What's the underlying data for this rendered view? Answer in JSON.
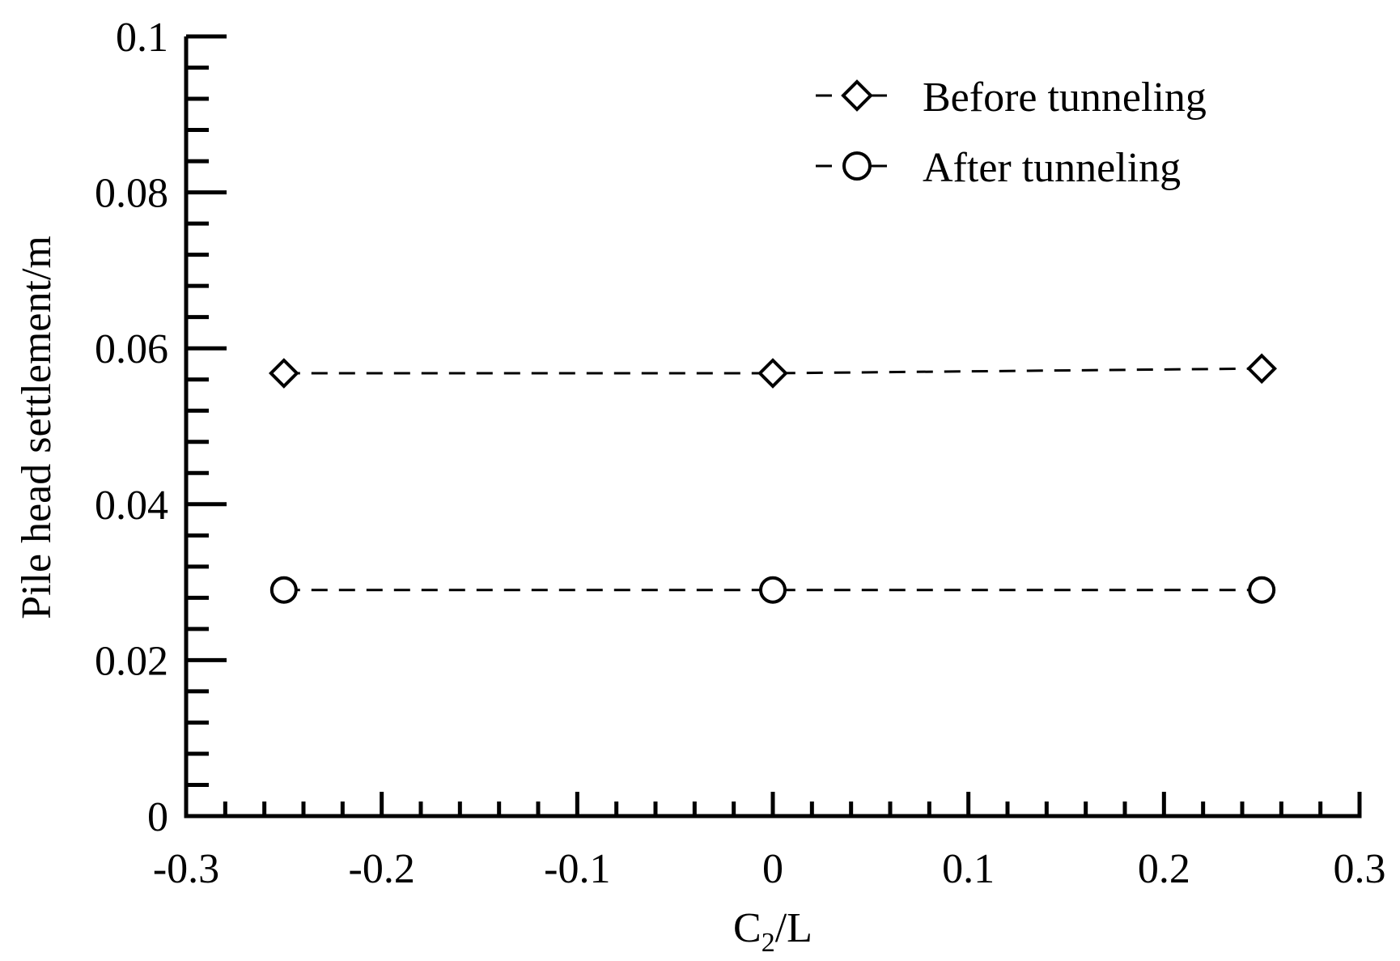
{
  "chart_data": {
    "type": "line",
    "xlabel_main": "C",
    "xlabel_sub": "2",
    "xlabel_rest": "/L",
    "ylabel": "Pile head settlement/m",
    "xlim": [
      -0.3,
      0.3
    ],
    "ylim": [
      0,
      0.1
    ],
    "xticks": [
      -0.3,
      -0.2,
      -0.1,
      0,
      0.1,
      0.2,
      0.3
    ],
    "xtick_labels": [
      "-0.3",
      "-0.2",
      "-0.1",
      "0",
      "0.1",
      "0.2",
      "0.3"
    ],
    "yticks": [
      0,
      0.02,
      0.04,
      0.06,
      0.08,
      0.1
    ],
    "ytick_labels": [
      "0",
      "0.02",
      "0.04",
      "0.06",
      "0.08",
      "0.1"
    ],
    "x": [
      -0.25,
      0,
      0.25
    ],
    "series": [
      {
        "name": "Before tunneling",
        "marker": "diamond",
        "values": [
          0.0568,
          0.0568,
          0.0574
        ]
      },
      {
        "name": "After tunneling",
        "marker": "circle",
        "values": [
          0.029,
          0.029,
          0.029
        ]
      }
    ],
    "legend": {
      "position": "top-right"
    },
    "grid": false
  }
}
